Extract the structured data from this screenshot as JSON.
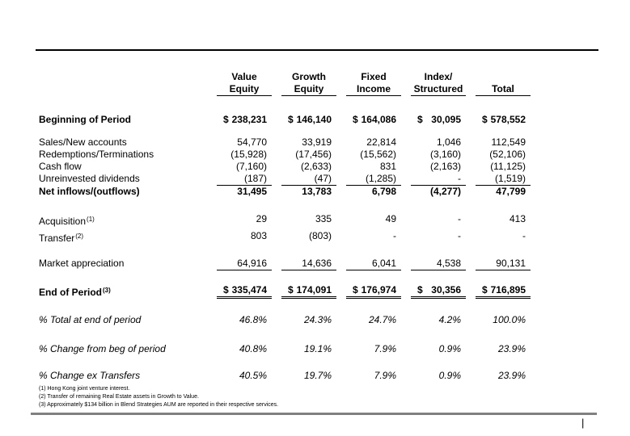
{
  "page": {
    "page_number": "|"
  },
  "table": {
    "columns": [
      {
        "line1": "Value",
        "line2": "Equity"
      },
      {
        "line1": "Growth",
        "line2": "Equity"
      },
      {
        "line1": "Fixed",
        "line2": "Income"
      },
      {
        "line1": "Index/",
        "line2": "Structured"
      },
      {
        "line1": "",
        "line2": "Total"
      }
    ],
    "rows": [
      {
        "label": "Beginning of Period",
        "bold": true,
        "dollar": true,
        "spacing": "s-beginning",
        "values": [
          "238,231",
          "146,140",
          "164,086",
          "30,095",
          "578,552"
        ]
      },
      {
        "label": "Sales/New accounts",
        "spacing": "s-sales",
        "values": [
          "54,770",
          "33,919",
          "22,814",
          "1,046",
          "112,549"
        ]
      },
      {
        "label": "Redemptions/Terminations",
        "values": [
          "(15,928)",
          "(17,456)",
          "(15,562)",
          "(3,160)",
          "(52,106)"
        ]
      },
      {
        "label": "Cash flow",
        "values": [
          "(7,160)",
          "(2,633)",
          "831",
          "(2,163)",
          "(11,125)"
        ]
      },
      {
        "label": "Unreinvested dividends",
        "underline": "single",
        "values": [
          "(187)",
          "(47)",
          "(1,285)",
          "-",
          "(1,519)"
        ]
      },
      {
        "label": "Net inflows/(outflows)",
        "bold": true,
        "spacing": "s-net",
        "values": [
          "31,495",
          "13,783",
          "6,798",
          "(4,277)",
          "47,799"
        ]
      },
      {
        "label": "Acquisition",
        "sup": "(1)",
        "spacing": "s-acq",
        "values": [
          "29",
          "335",
          "49",
          "-",
          "413"
        ]
      },
      {
        "label": "Transfer",
        "sup": "(2)",
        "spacing": "s-transfer",
        "values": [
          "803",
          "(803)",
          "-",
          "-",
          "-"
        ]
      },
      {
        "label": "Market appreciation",
        "underline": "single",
        "spacing": "s-market",
        "values": [
          "64,916",
          "14,636",
          "6,041",
          "4,538",
          "90,131"
        ]
      },
      {
        "label": "End of Period",
        "sup": "(3)",
        "bold": true,
        "dollar": true,
        "underline": "double",
        "spacing": "s-end",
        "values": [
          "335,474",
          "174,091",
          "176,974",
          "30,356",
          "716,895"
        ]
      },
      {
        "label": "% Total at end of period",
        "italic": true,
        "spacing": "s-pct1",
        "values": [
          "46.8%",
          "24.3%",
          "24.7%",
          "4.2%",
          "100.0%"
        ]
      },
      {
        "label": "% Change from beg of period",
        "italic": true,
        "spacing": "s-pct2",
        "values": [
          "40.8%",
          "19.1%",
          "7.9%",
          "0.9%",
          "23.9%"
        ]
      },
      {
        "label": "% Change ex Transfers",
        "italic": true,
        "spacing": "s-pct3",
        "values": [
          "40.5%",
          "19.7%",
          "7.9%",
          "0.9%",
          "23.9%"
        ]
      }
    ]
  },
  "footnotes": [
    "(1) Hong Kong joint venture interest.",
    "(2) Transfer of remaining Real Estate assets in Growth to Value.",
    "(3) Approximately $134 billion in Blend Strategies AUM are reported in their respective services."
  ]
}
